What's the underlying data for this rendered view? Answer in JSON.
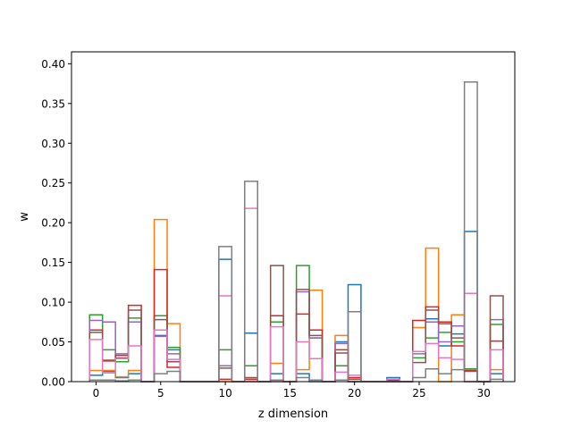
{
  "chart_data": {
    "type": "step-histogram",
    "title": "",
    "xlabel": "z dimension",
    "ylabel": "w",
    "xlim": [
      -1.9,
      32.4
    ],
    "ylim": [
      0,
      0.415
    ],
    "grid": false,
    "legend": "none",
    "bin_start": -0.5,
    "bin_width": 1,
    "x_ticks": [
      0,
      5,
      10,
      15,
      20,
      25,
      30
    ],
    "y_ticks": [
      0.0,
      0.05,
      0.1,
      0.15,
      0.2,
      0.25,
      0.3,
      0.35,
      0.4
    ],
    "y_tick_labels": [
      "0.00",
      "0.05",
      "0.10",
      "0.15",
      "0.20",
      "0.25",
      "0.30",
      "0.35",
      "0.40"
    ],
    "series": [
      {
        "color": "#1f77b4",
        "values": [
          0.008,
          0.013,
          0.005,
          0.01,
          0.0,
          0.058,
          0.04,
          0.0,
          0.0,
          0.0,
          0.154,
          0.0,
          0.061,
          0.0,
          0.01,
          0.0,
          0.01,
          0.0,
          0.0,
          0.05,
          0.122,
          0.0,
          0.0,
          0.005,
          0.0,
          0.038,
          0.079,
          0.045,
          0.06,
          0.189,
          0.0,
          0.01
        ]
      },
      {
        "color": "#ff7f0e",
        "values": [
          0.014,
          0.014,
          0.006,
          0.014,
          0.0,
          0.204,
          0.073,
          0.0,
          0.0,
          0.0,
          0.0,
          0.0,
          0.0,
          0.0,
          0.023,
          0.0,
          0.015,
          0.115,
          0.0,
          0.058,
          0.0,
          0.0,
          0.0,
          0.0,
          0.0,
          0.068,
          0.168,
          0.0,
          0.084,
          0.0,
          0.0,
          0.015
        ]
      },
      {
        "color": "#2ca02c",
        "values": [
          0.084,
          0.04,
          0.025,
          0.08,
          0.0,
          0.083,
          0.043,
          0.0,
          0.0,
          0.0,
          0.04,
          0.0,
          0.02,
          0.0,
          0.075,
          0.0,
          0.146,
          0.055,
          0.0,
          0.02,
          0.0,
          0.0,
          0.0,
          0.0,
          0.0,
          0.03,
          0.055,
          0.062,
          0.05,
          0.016,
          0.0,
          0.072
        ]
      },
      {
        "color": "#d62728",
        "values": [
          0.065,
          0.026,
          0.033,
          0.096,
          0.0,
          0.141,
          0.018,
          0.0,
          0.0,
          0.0,
          0.003,
          0.0,
          0.003,
          0.0,
          0.083,
          0.0,
          0.085,
          0.065,
          0.0,
          0.04,
          0.005,
          0.0,
          0.0,
          0.002,
          0.0,
          0.077,
          0.094,
          0.075,
          0.045,
          0.014,
          0.0,
          0.051
        ]
      },
      {
        "color": "#9467bd",
        "values": [
          0.077,
          0.075,
          0.035,
          0.075,
          0.0,
          0.057,
          0.035,
          0.0,
          0.0,
          0.0,
          0.02,
          0.0,
          0.0,
          0.0,
          0.0,
          0.0,
          0.113,
          0.055,
          0.0,
          0.048,
          0.0,
          0.0,
          0.0,
          0.0,
          0.0,
          0.035,
          0.075,
          0.05,
          0.07,
          0.0,
          0.0,
          0.078
        ]
      },
      {
        "color": "#8c564b",
        "values": [
          0.062,
          0.027,
          0.03,
          0.09,
          0.0,
          0.078,
          0.025,
          0.0,
          0.0,
          0.0,
          0.017,
          0.0,
          0.005,
          0.0,
          0.146,
          0.0,
          0.116,
          0.058,
          0.0,
          0.036,
          0.003,
          0.0,
          0.0,
          0.0,
          0.0,
          0.024,
          0.09,
          0.073,
          0.055,
          0.013,
          0.0,
          0.108
        ]
      },
      {
        "color": "#e377c2",
        "values": [
          0.053,
          0.011,
          0.029,
          0.045,
          0.0,
          0.065,
          0.028,
          0.0,
          0.0,
          0.0,
          0.108,
          0.0,
          0.218,
          0.0,
          0.069,
          0.0,
          0.05,
          0.029,
          0.0,
          0.012,
          0.008,
          0.0,
          0.0,
          0.003,
          0.0,
          0.038,
          0.048,
          0.03,
          0.028,
          0.111,
          0.0,
          0.04
        ]
      },
      {
        "color": "#7f7f7f",
        "values": [
          0.002,
          0.002,
          0.001,
          0.002,
          0.0,
          0.01,
          0.013,
          0.0,
          0.0,
          0.0,
          0.17,
          0.0,
          0.252,
          0.0,
          0.002,
          0.0,
          0.005,
          0.002,
          0.0,
          0.002,
          0.088,
          0.0,
          0.0,
          0.0,
          0.0,
          0.005,
          0.016,
          0.01,
          0.015,
          0.377,
          0.0,
          0.003
        ]
      }
    ]
  }
}
